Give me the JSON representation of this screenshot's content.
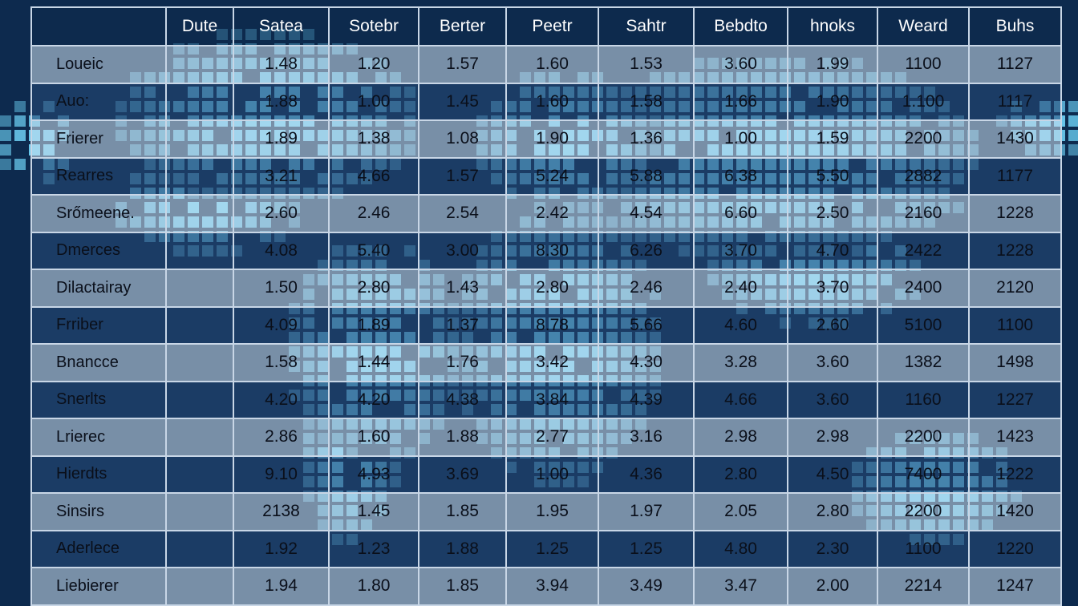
{
  "chart_data": {
    "type": "table",
    "columns": [
      "",
      "Dute",
      "Satea",
      "Sotebr",
      "Berter",
      "Peetr",
      "Sahtr",
      "Bebdto",
      "hnoks",
      "Weard",
      "Buhs"
    ],
    "rows": [
      {
        "label": "Loueic",
        "values": [
          "",
          "1.48",
          "1.20",
          "1.57",
          "1.60",
          "1.53",
          "3.60",
          "1.99",
          "1100",
          "1127"
        ]
      },
      {
        "label": "Auo:",
        "values": [
          "",
          "1.88",
          "1.00",
          "1.45",
          "1.60",
          "1.58",
          "1.66",
          "1.90",
          "1.100",
          "1117"
        ]
      },
      {
        "label": "Frierer",
        "values": [
          "",
          "1.89",
          "1.38",
          "1.08",
          "1.90",
          "1.36",
          "1.00",
          "1.59",
          "2200",
          "1430"
        ]
      },
      {
        "label": "Rearres",
        "values": [
          "",
          "3.21",
          "4.66",
          "1.57",
          "5.24",
          "5.88",
          "6.38",
          "5.50",
          "2882",
          "1177"
        ]
      },
      {
        "label": "Srőmeene.",
        "values": [
          "",
          "2.60",
          "2.46",
          "2.54",
          "2.42",
          "4.54",
          "6.60",
          "2.50",
          "2160",
          "1228"
        ]
      },
      {
        "label": "Dmerces",
        "values": [
          "",
          "4.08",
          "5.40",
          "3.00",
          "8.30",
          "6.26",
          "3.70",
          "4.70",
          "2422",
          "1228"
        ]
      },
      {
        "label": "Dilactairay",
        "values": [
          "",
          "1.50",
          "2.80",
          "1.43",
          "2.80",
          "2.46",
          "2.40",
          "3.70",
          "2400",
          "2120"
        ]
      },
      {
        "label": "Frriber",
        "values": [
          "",
          "4.09",
          "1.89",
          "1.37",
          "8.78",
          "5.66",
          "4.60",
          "2.60",
          "5100",
          "1100"
        ]
      },
      {
        "label": "Bnancce",
        "values": [
          "",
          "1.58",
          "1.44",
          "1.76",
          "3.42",
          "4.30",
          "3.28",
          "3.60",
          "1382",
          "1498"
        ]
      },
      {
        "label": "Snerlts",
        "values": [
          "",
          "4.20",
          "4.20",
          "4.38",
          "3.84",
          "4.39",
          "4.66",
          "3.60",
          "1160",
          "1227"
        ]
      },
      {
        "label": "Lrierec",
        "values": [
          "",
          "2.86",
          "1.60",
          "1.88",
          "2.77",
          "3.16",
          "2.98",
          "2.98",
          "2200",
          "1423"
        ]
      },
      {
        "label": "Hierdts",
        "values": [
          "",
          "9.10",
          "4.93",
          "3.69",
          "1.00",
          "4.36",
          "2.80",
          "4.50",
          "7400",
          "1222"
        ]
      },
      {
        "label": "Sinsirs",
        "values": [
          "",
          "2138",
          "1.45",
          "1.85",
          "1.95",
          "1.97",
          "2.05",
          "2.80",
          "2200",
          "1420"
        ]
      },
      {
        "label": "Aderlece",
        "values": [
          "",
          "1.92",
          "1.23",
          "1.88",
          "1.25",
          "1.25",
          "4.80",
          "2.30",
          "1100",
          "1220"
        ]
      },
      {
        "label": "Liebierer",
        "values": [
          "",
          "1.94",
          "1.80",
          "1.85",
          "3.94",
          "3.49",
          "3.47",
          "2.00",
          "2214",
          "1247"
        ]
      }
    ],
    "colors": {
      "background": "#0d2a4e",
      "map_pixels": "#6fd3f7",
      "row_light": "#d2e1f0",
      "row_dark": "#284b78",
      "header_text": "#ffffff"
    }
  }
}
